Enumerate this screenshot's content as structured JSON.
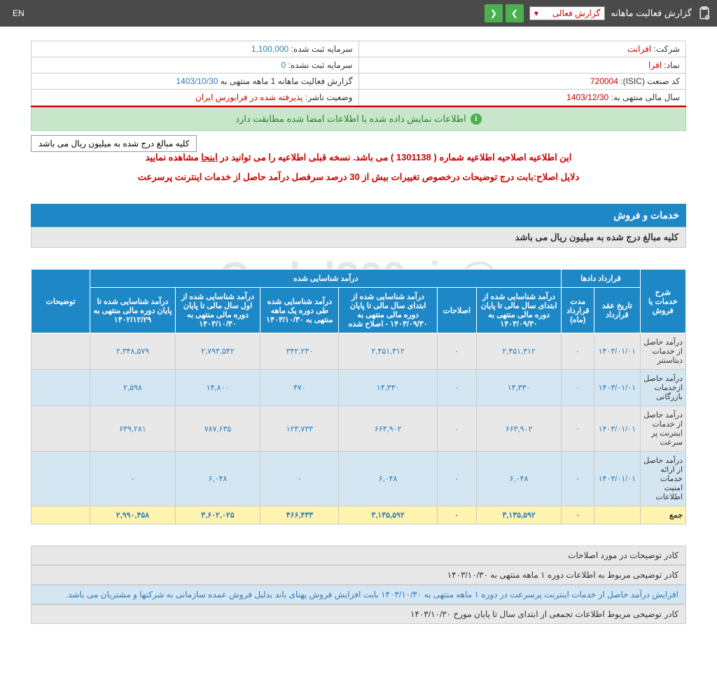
{
  "topbar": {
    "title": "گزارش فعالیت ماهانه",
    "dropdown": "گزارش فعالی",
    "lang": "EN"
  },
  "info": {
    "company_label": "شرکت:",
    "company_value": "افرانت",
    "capital_reg_label": "سرمایه ثبت شده:",
    "capital_reg_value": "1,100,000",
    "symbol_label": "نماد:",
    "symbol_value": "افرا",
    "capital_unreg_label": "سرمایه ثبت نشده:",
    "capital_unreg_value": "0",
    "isic_label": "کد صنعت (ISIC):",
    "isic_value": "720004",
    "report_label": "گزارش فعالیت ماهانه  1 ماهه منتهی به",
    "report_date": "1403/10/30",
    "fiscal_label": "سال مالی منتهی به:",
    "fiscal_value": "1403/12/30",
    "publisher_label": "وضعیت ناشر:",
    "publisher_value": "پذیرفته شده در فرابورس ایران"
  },
  "banner": "اطلاعات نمایش داده شده با اطلاعات امضا شده مطابقت دارد",
  "unit_note": "کلیه مبالغ درج شده به میلیون ریال می باشد",
  "notice1_pre": "این اطلاعیه اصلاحیه اطلاعیه شماره ( 1301138 ) می باشد. نسخه قبلی اطلاعیه را می توانید در ",
  "notice1_link": "اینجا",
  "notice1_post": " مشاهده نمایید",
  "notice2": "دلایل اصلاح:بابت درج توضیحات درخصوص تغییرات بیش از 30 درصد سرفصل درآمد حاصل از خدمات اینترنت پرسرعت",
  "section_title": "خدمات و فروش",
  "sub_title": "کلیه مبالغ درج شده به میلیون ریال می باشد",
  "table": {
    "headers": {
      "h_desc": "شرح خدمات یا فروش",
      "h_contract": "قرارداد دادها",
      "h_income": "درآمد شناسایی شده",
      "h_notes": "توضیحات",
      "h_date": "تاریخ عقد قرارداد",
      "h_duration": "مدت قرارداد (ماه)",
      "h_c1": "درآمد شناسایی شده از ابتدای سال مالی تا پایان دوره مالی منتهی به ۱۴۰۳/۰۹/۳۰",
      "h_c2": "اصلاحات",
      "h_c3": "درآمد شناسایی شده از ابتدای سال مالی تا پایان دوره مالی منتهی به ۱۴۰۳/۰۹/۳۰ - اصلاح شده",
      "h_c4": "درآمد شناسایی شده طی دوره یک ماهه منتهی به ۱۴۰۳/۱۰/۳۰",
      "h_c5": "درآمد شناسایی شده از اول سال مالی تا پایان دوره مالی منتهی به ۱۴۰۳/۱۰/۳۰",
      "h_c6": "درآمد شناسایی شده تا پایان دوره مالی منتهی به ۱۴۰۲/۱۲/۲۹"
    },
    "rows": [
      {
        "label": "درآمد حاصل از خدمات دیتاسنتر",
        "date": "۱۴۰۳/۰۱/۰۱",
        "dur": "۰",
        "v1": "۲,۴۵۱,۳۱۲",
        "v2": "۰",
        "v3": "۲,۴۵۱,۳۱۲",
        "v4": "۳۴۲,۲۳۰",
        "v5": "۲,۷۹۳,۵۴۲",
        "v6": "۲,۳۴۸,۵۷۹"
      },
      {
        "label": "درآمد حاصل ازخدمات بازرگانی",
        "date": "۱۴۰۳/۰۱/۰۱",
        "dur": "۰",
        "v1": "۱۴,۳۳۰",
        "v2": "۰",
        "v3": "۱۴,۳۳۰",
        "v4": "۴۷۰",
        "v5": "۱۴,۸۰۰",
        "v6": "۲,۵۹۸"
      },
      {
        "label": "درآمد حاصل از خدمات اینترنت پر سرعت",
        "date": "۱۴۰۳/۰۱/۰۱",
        "dur": "۰",
        "v1": "۶۶۳,۹۰۲",
        "v2": "۰",
        "v3": "۶۶۳,۹۰۲",
        "v4": "۱۲۳,۷۳۳",
        "v5": "۷۸۷,۶۳۵",
        "v6": "۶۳۹,۲۸۱"
      },
      {
        "label": "درآمد حاصل از ارائه خدمات امنیت اطلاعات",
        "date": "۱۴۰۳/۰۱/۰۱",
        "dur": "۰",
        "v1": "۶,۰۴۸",
        "v2": "۰",
        "v3": "۶,۰۴۸",
        "v4": "۰",
        "v5": "۶,۰۴۸",
        "v6": "۰"
      }
    ],
    "total": {
      "label": "جمع",
      "dur": "۰",
      "v1": "۳,۱۳۵,۵۹۲",
      "v2": "۰",
      "v3": "۳,۱۳۵,۵۹۲",
      "v4": "۴۶۶,۴۳۳",
      "v5": "۳,۶۰۲,۰۲۵",
      "v6": "۲,۹۹۰,۴۵۸"
    }
  },
  "desc": {
    "d1": "کادر توضیحات در مورد اصلاحات",
    "d2": "کادر توضیحی مربوط به اطلاعات دوره ۱ ماهه منتهی به ۱۴۰۳/۱۰/۳۰",
    "d3": "افزایش درآمد حاصل از خدمات اینترنت پرسرعت در دوره ۱ ماهه منتهی به ۱۴۰۳/۱۰/۳۰ بابت افزایش فروش پهنای باند بدلیل فروش عمده سازمانی به شرکتها و مشتریان می باشد.",
    "d4": "کادر توضیحی مربوط اطلاعات تجمعی از ابتدای سال تا پایان مورخ ۱۴۰۳/۱۰/۳۰"
  },
  "watermark": {
    "main": "@Codal360_ir",
    "sub": "nabzebourse.com"
  }
}
